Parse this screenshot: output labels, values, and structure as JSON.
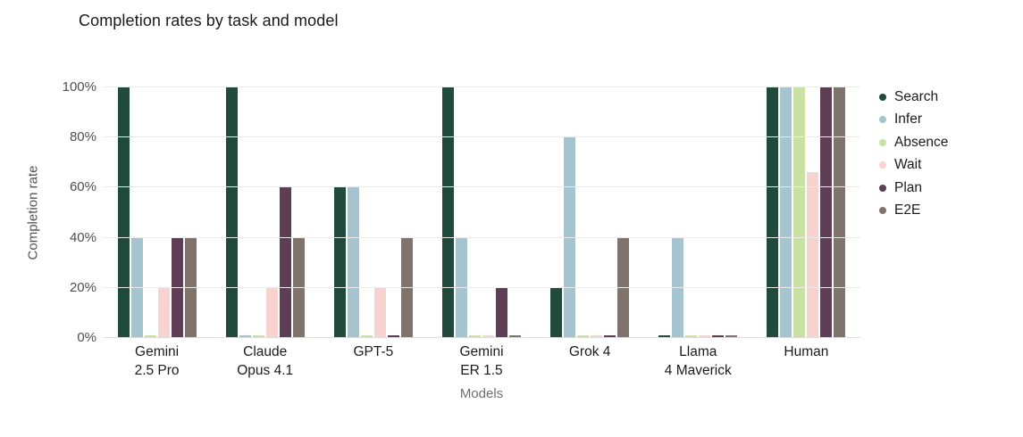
{
  "title": "Completion rates by task and model",
  "chart_data": {
    "type": "bar",
    "title": "Completion rates by task and model",
    "xlabel": "Models",
    "ylabel": "Completion rate",
    "ylim": [
      0,
      100
    ],
    "y_ticks": [
      "0%",
      "20%",
      "40%",
      "60%",
      "80%",
      "100%"
    ],
    "grid": true,
    "legend_position": "right",
    "categories": [
      "Gemini 2.5 Pro",
      "Claude Opus 4.1",
      "GPT-5",
      "Gemini ER 1.5",
      "Grok 4",
      "Llama 4 Maverick",
      "Human"
    ],
    "category_label_lines": [
      [
        "Gemini",
        "2.5 Pro"
      ],
      [
        "Claude",
        "Opus 4.1"
      ],
      [
        "GPT-5"
      ],
      [
        "Gemini",
        "ER 1.5"
      ],
      [
        "Grok 4"
      ],
      [
        "Llama",
        "4 Maverick"
      ],
      [
        "Human"
      ]
    ],
    "series": [
      {
        "name": "Search",
        "color": "#1f4a3c",
        "values": [
          100,
          100,
          60,
          100,
          20,
          0,
          100
        ]
      },
      {
        "name": "Infer",
        "color": "#a4c4cf",
        "values": [
          40,
          0,
          60,
          40,
          80,
          40,
          100
        ]
      },
      {
        "name": "Absence",
        "color": "#cbe0a3",
        "values": [
          0,
          0,
          0,
          0,
          0,
          0,
          100
        ]
      },
      {
        "name": "Wait",
        "color": "#f8d2cf",
        "values": [
          20,
          20,
          20,
          0,
          0,
          0,
          66
        ]
      },
      {
        "name": "Plan",
        "color": "#5f3d55",
        "values": [
          40,
          60,
          0,
          20,
          0,
          0,
          100
        ]
      },
      {
        "name": "E2E",
        "color": "#80736b",
        "values": [
          40,
          40,
          40,
          0,
          40,
          0,
          100
        ]
      }
    ]
  }
}
